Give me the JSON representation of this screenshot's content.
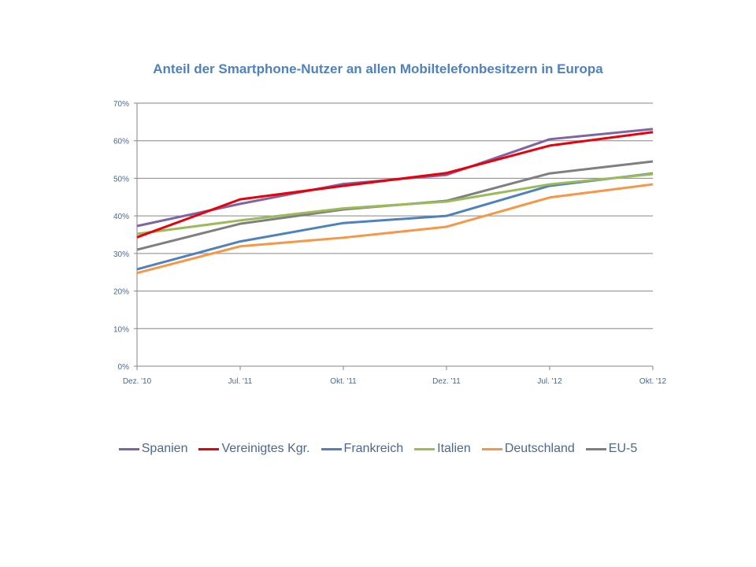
{
  "chart_data": {
    "type": "line",
    "title": "Anteil der Smartphone-Nutzer  an allen Mobiltelefonbesitzern  in Europa",
    "xlabel": "",
    "ylabel": "",
    "categories": [
      "Dez. '10",
      "Jul. '11",
      "Okt. '11",
      "Dez. '11",
      "Jul. '12",
      "Okt. '12"
    ],
    "ylim": [
      0,
      70
    ],
    "yticks": [
      "0%",
      "10%",
      "20%",
      "30%",
      "40%",
      "50%",
      "60%",
      "70%"
    ],
    "grid": true,
    "legend": "bottom",
    "series": [
      {
        "name": "Spanien",
        "color": "#8064a2",
        "values": [
          37.3,
          43.2,
          48.5,
          50.9,
          60.4,
          63.1
        ]
      },
      {
        "name": "Vereinigtes Kgr.",
        "color": "#e8000b",
        "values": [
          34.3,
          44.4,
          48.0,
          51.4,
          58.7,
          62.3
        ]
      },
      {
        "name": "Frankreich",
        "color": "#4f81bd",
        "values": [
          25.8,
          33.2,
          38.1,
          40.0,
          48.0,
          51.3
        ]
      },
      {
        "name": "Italien",
        "color": "#9bbb59",
        "values": [
          35.2,
          38.8,
          42.0,
          43.8,
          48.4,
          51.1
        ]
      },
      {
        "name": "Deutschland",
        "color": "#f79646",
        "values": [
          24.8,
          31.9,
          34.2,
          37.1,
          44.9,
          48.4
        ]
      },
      {
        "name": "EU-5",
        "color": "#7f7f7f",
        "values": [
          31.0,
          37.9,
          41.7,
          44.0,
          51.3,
          54.5
        ]
      }
    ]
  }
}
